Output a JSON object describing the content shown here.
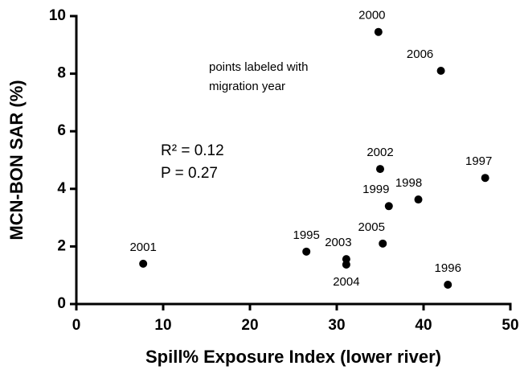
{
  "chart_data": {
    "type": "scatter",
    "x_label": "Spill% Exposure Index (lower river)",
    "y_label": "MCN-BON SAR (%)",
    "annotations": [
      "points labeled with",
      "migration year",
      "R² = 0.12",
      "P = 0.27"
    ],
    "point_labels": [
      "2000",
      "2006",
      "2002",
      "1997",
      "1999",
      "1998",
      "2005",
      "1995",
      "2003",
      "2004",
      "1996",
      "2001"
    ],
    "x": [
      34.8,
      42,
      35.0,
      47.1,
      36.0,
      39.4,
      35.3,
      26.5,
      31.1,
      31.1,
      42.8,
      7.7
    ],
    "y": [
      9.45,
      8.1,
      4.69,
      4.38,
      3.4,
      3.63,
      2.1,
      1.82,
      1.56,
      1.37,
      0.67,
      1.4
    ],
    "color": "#000000",
    "xlim": [
      0,
      50
    ],
    "xticks": [
      0,
      10,
      20,
      30,
      40,
      50
    ],
    "ylim": [
      0,
      10
    ],
    "yticks": [
      0,
      2,
      4,
      6,
      8,
      10
    ]
  }
}
